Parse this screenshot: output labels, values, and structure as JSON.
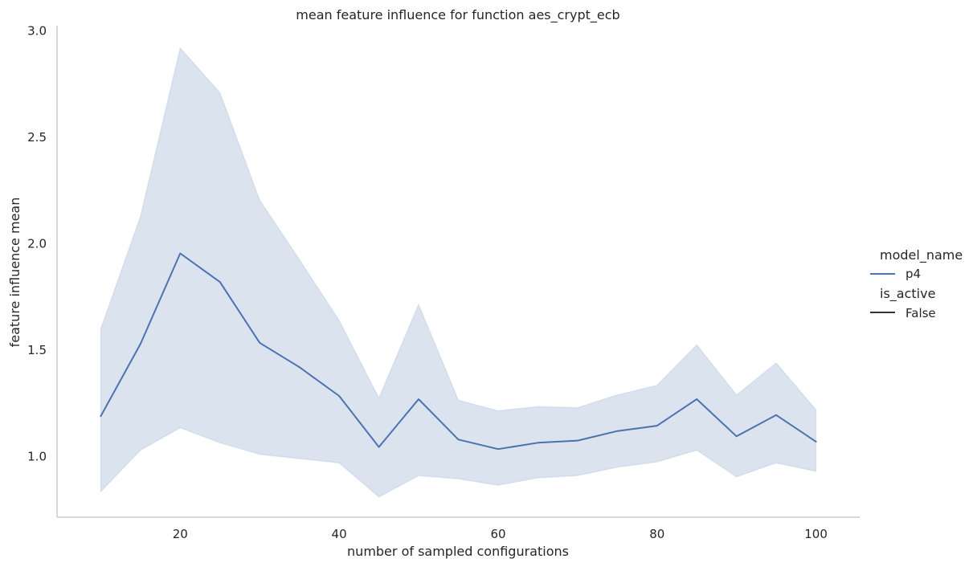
{
  "chart_data": {
    "type": "line",
    "title": "mean feature influence for function aes_crypt_ecb",
    "xlabel": "number of sampled configurations",
    "ylabel": "feature influence mean",
    "xlim": [
      4.5,
      105.5
    ],
    "ylim": [
      0.715,
      3.025
    ],
    "xticks": [
      20,
      40,
      60,
      80,
      100
    ],
    "yticks": [
      1.0,
      1.5,
      2.0,
      2.5,
      3.0
    ],
    "ytick_labels": [
      "1.0",
      "1.5",
      "2.0",
      "2.5",
      "3.0"
    ],
    "grid": false,
    "legend_placement": "right",
    "x": [
      10,
      15,
      20,
      25,
      30,
      35,
      40,
      45,
      50,
      55,
      60,
      65,
      70,
      75,
      80,
      85,
      90,
      95,
      100
    ],
    "series": [
      {
        "name": "p4",
        "color": "#4c72b0",
        "values": [
          1.19,
          1.53,
          1.955,
          1.82,
          1.535,
          1.42,
          1.285,
          1.045,
          1.27,
          1.08,
          1.035,
          1.065,
          1.075,
          1.12,
          1.145,
          1.27,
          1.095,
          1.195,
          1.07
        ],
        "ci_upper": [
          1.6,
          2.13,
          2.92,
          2.71,
          2.205,
          1.925,
          1.64,
          1.275,
          1.715,
          1.265,
          1.215,
          1.235,
          1.23,
          1.29,
          1.335,
          1.525,
          1.29,
          1.44,
          1.22
        ],
        "ci_lower": [
          0.835,
          1.03,
          1.135,
          1.065,
          1.01,
          0.99,
          0.97,
          0.81,
          0.91,
          0.895,
          0.865,
          0.9,
          0.91,
          0.95,
          0.975,
          1.03,
          0.905,
          0.97,
          0.93
        ]
      }
    ],
    "legend": {
      "groups": [
        {
          "title": "model_name",
          "entries": [
            {
              "label": "p4",
              "color": "#4c72b0"
            }
          ]
        },
        {
          "title": "is_active",
          "entries": [
            {
              "label": "False",
              "color": "#333333"
            }
          ]
        }
      ]
    }
  }
}
